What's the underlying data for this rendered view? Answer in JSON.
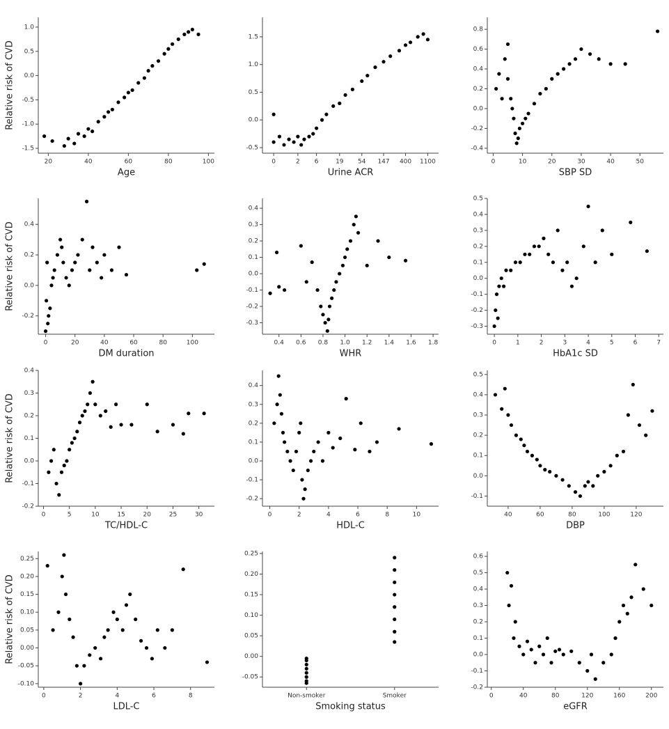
{
  "chart_data": [
    {
      "type": "scatter",
      "ylabel": "Relative risk of CVD",
      "xlabel": "Age",
      "color": "#000000",
      "x": [
        18,
        22,
        28,
        30,
        33,
        35,
        38,
        40,
        42,
        45,
        48,
        50,
        52,
        55,
        58,
        60,
        62,
        65,
        68,
        70,
        72,
        75,
        78,
        80,
        82,
        85,
        88,
        90,
        92,
        95
      ],
      "y": [
        -1.25,
        -1.35,
        -1.45,
        -1.3,
        -1.4,
        -1.2,
        -1.25,
        -1.1,
        -1.15,
        -0.95,
        -0.85,
        -0.75,
        -0.7,
        -0.55,
        -0.45,
        -0.35,
        -0.3,
        -0.15,
        -0.05,
        0.1,
        0.2,
        0.3,
        0.45,
        0.55,
        0.65,
        0.75,
        0.85,
        0.9,
        0.95,
        0.85
      ],
      "xlim": [
        15,
        103
      ],
      "xticks": [
        20,
        40,
        60,
        80,
        100
      ],
      "ylim": [
        -1.6,
        1.2
      ],
      "yticks": [
        -1.5,
        {
          "value": -1.0,
          "label": "-1.0"
        },
        -0.5,
        {
          "value": 0.0,
          "label": "0.0"
        },
        0.5,
        {
          "value": 1.0,
          "label": "1.0"
        }
      ]
    },
    {
      "type": "scatter",
      "xlabel": "Urine ACR",
      "color": "#000000",
      "xscale": "log1p",
      "x": [
        0,
        0,
        0.3,
        0.6,
        1,
        1.5,
        2,
        2.5,
        3,
        4,
        5,
        6,
        8,
        10,
        14,
        19,
        25,
        35,
        54,
        70,
        100,
        147,
        200,
        300,
        400,
        500,
        700,
        900,
        1100
      ],
      "y": [
        -0.4,
        0.1,
        -0.3,
        -0.45,
        -0.35,
        -0.4,
        -0.3,
        -0.45,
        -0.35,
        -0.3,
        -0.25,
        -0.15,
        0.0,
        0.1,
        0.25,
        0.3,
        0.45,
        0.55,
        0.7,
        0.8,
        0.95,
        1.05,
        1.15,
        1.25,
        1.35,
        1.4,
        1.5,
        1.55,
        1.45
      ],
      "xlim": [
        -0.4,
        1800
      ],
      "xticks": [
        0,
        2,
        6,
        19,
        54,
        147,
        400,
        1100
      ],
      "ylim": [
        -0.6,
        1.85
      ],
      "yticks": [
        -0.5,
        {
          "value": 0.0,
          "label": "0.0"
        },
        0.5,
        {
          "value": 1.0,
          "label": "1.0"
        },
        1.5
      ]
    },
    {
      "type": "scatter",
      "xlabel": "SBP SD",
      "color": "#000000",
      "x": [
        1,
        2,
        3,
        4,
        5,
        5,
        6,
        6.5,
        7,
        7.5,
        8,
        8.5,
        9,
        10,
        11,
        12,
        14,
        16,
        18,
        20,
        22,
        24,
        26,
        28,
        30,
        33,
        36,
        40,
        45,
        56
      ],
      "y": [
        0.2,
        0.35,
        0.1,
        0.5,
        0.3,
        0.65,
        0.1,
        0.0,
        -0.1,
        -0.25,
        -0.35,
        -0.3,
        -0.2,
        -0.15,
        -0.1,
        -0.05,
        0.05,
        0.15,
        0.2,
        0.3,
        0.35,
        0.4,
        0.45,
        0.5,
        0.6,
        0.55,
        0.5,
        0.45,
        0.45,
        0.78
      ],
      "xlim": [
        -2,
        58
      ],
      "xticks": [
        0,
        10,
        20,
        30,
        40,
        50
      ],
      "ylim": [
        -0.45,
        0.92
      ],
      "yticks": [
        -0.4,
        -0.2,
        {
          "value": 0.0,
          "label": "0.0"
        },
        0.2,
        0.4,
        0.6,
        0.8
      ]
    },
    {
      "type": "scatter",
      "ylabel": "Relative risk of CVD",
      "xlabel": "DM duration",
      "color": "#000000",
      "x": [
        0,
        0.5,
        1,
        1.5,
        2,
        3,
        4,
        5,
        6,
        8,
        10,
        11,
        12,
        14,
        16,
        18,
        20,
        22,
        25,
        28,
        30,
        32,
        35,
        38,
        40,
        45,
        50,
        55,
        103,
        108
      ],
      "y": [
        -0.3,
        -0.1,
        0.15,
        -0.25,
        -0.2,
        -0.15,
        0.0,
        0.05,
        0.1,
        0.2,
        0.3,
        0.25,
        0.15,
        0.05,
        0.0,
        0.1,
        0.15,
        0.2,
        0.3,
        0.55,
        0.1,
        0.25,
        0.15,
        0.05,
        0.2,
        0.1,
        0.25,
        0.07,
        0.1,
        0.14
      ],
      "xlim": [
        -5,
        115
      ],
      "xticks": [
        0,
        20,
        40,
        60,
        80,
        100
      ],
      "ylim": [
        -0.32,
        0.57
      ],
      "yticks": [
        -0.2,
        {
          "value": 0.0,
          "label": "0.0"
        },
        0.2,
        0.4
      ]
    },
    {
      "type": "scatter",
      "xlabel": "WHR",
      "color": "#000000",
      "x": [
        0.32,
        0.38,
        0.4,
        0.45,
        0.6,
        0.65,
        0.7,
        0.75,
        0.78,
        0.8,
        0.82,
        0.84,
        0.85,
        0.86,
        0.88,
        0.9,
        0.92,
        0.95,
        0.98,
        1.0,
        1.02,
        1.05,
        1.08,
        1.1,
        1.12,
        1.2,
        1.3,
        1.4,
        1.55
      ],
      "y": [
        -0.12,
        0.13,
        -0.08,
        -0.1,
        0.17,
        -0.05,
        0.07,
        -0.1,
        -0.2,
        -0.25,
        -0.3,
        -0.35,
        -0.28,
        -0.2,
        -0.15,
        -0.1,
        -0.05,
        0.0,
        0.05,
        0.1,
        0.15,
        0.2,
        0.3,
        0.35,
        0.25,
        0.05,
        0.2,
        0.1,
        0.08
      ],
      "xlim": [
        0.25,
        1.85
      ],
      "xticks": [
        0.4,
        0.6,
        0.8,
        {
          "value": 1.0,
          "label": "1.0"
        },
        1.2,
        1.4,
        1.6,
        1.8
      ],
      "ylim": [
        -0.37,
        0.46
      ],
      "yticks": [
        -0.3,
        -0.2,
        -0.1,
        {
          "value": 0.0,
          "label": "0.0"
        },
        0.1,
        0.2,
        0.3,
        0.4
      ]
    },
    {
      "type": "scatter",
      "xlabel": "HbA1c SD",
      "color": "#000000",
      "x": [
        0,
        0.05,
        0.1,
        0.15,
        0.2,
        0.3,
        0.4,
        0.5,
        0.7,
        0.9,
        1.1,
        1.3,
        1.5,
        1.7,
        1.9,
        2.1,
        2.3,
        2.5,
        2.7,
        2.9,
        3.1,
        3.3,
        3.5,
        3.8,
        4.0,
        4.3,
        4.6,
        5.0,
        5.8,
        6.5
      ],
      "y": [
        -0.3,
        -0.2,
        -0.1,
        -0.25,
        -0.05,
        0.0,
        -0.05,
        0.05,
        0.05,
        0.1,
        0.1,
        0.15,
        0.15,
        0.2,
        0.2,
        0.25,
        0.15,
        0.1,
        0.3,
        0.05,
        0.1,
        -0.05,
        0.0,
        0.2,
        0.45,
        0.1,
        0.3,
        0.15,
        0.35,
        0.17
      ],
      "xlim": [
        -0.3,
        7.2
      ],
      "xticks": [
        0,
        1,
        2,
        3,
        4,
        5,
        6,
        7
      ],
      "ylim": [
        -0.35,
        0.5
      ],
      "yticks": [
        -0.3,
        -0.2,
        -0.1,
        {
          "value": 0.0,
          "label": "0.0"
        },
        0.1,
        0.2,
        0.3,
        0.4,
        0.5
      ]
    },
    {
      "type": "scatter",
      "ylabel": "Relative risk of CVD",
      "xlabel": "TC/HDL-C",
      "color": "#000000",
      "x": [
        1,
        1.5,
        2,
        2.5,
        3,
        3.5,
        4,
        4.5,
        5,
        5.5,
        6,
        6.5,
        7,
        7.5,
        8,
        8.5,
        9,
        9.5,
        10,
        11,
        12,
        13,
        14,
        15,
        17,
        20,
        22,
        25,
        27,
        28,
        31
      ],
      "y": [
        -0.05,
        0.0,
        0.05,
        -0.1,
        -0.15,
        -0.05,
        -0.02,
        0.0,
        0.05,
        0.08,
        0.1,
        0.13,
        0.17,
        0.2,
        0.22,
        0.25,
        0.3,
        0.35,
        0.25,
        0.2,
        0.22,
        0.15,
        0.25,
        0.16,
        0.16,
        0.25,
        0.13,
        0.16,
        0.12,
        0.21,
        0.21
      ],
      "xlim": [
        -1,
        33
      ],
      "xticks": [
        0,
        5,
        10,
        15,
        20,
        25,
        30
      ],
      "ylim": [
        -0.2,
        0.4
      ],
      "yticks": [
        -0.2,
        -0.1,
        {
          "value": 0.0,
          "label": "0.0"
        },
        0.1,
        0.2,
        0.3,
        0.4
      ]
    },
    {
      "type": "scatter",
      "xlabel": "HDL-C",
      "color": "#000000",
      "x": [
        0.3,
        0.5,
        0.6,
        0.7,
        0.8,
        0.9,
        1.0,
        1.2,
        1.4,
        1.6,
        1.8,
        2.0,
        2.1,
        2.2,
        2.3,
        2.4,
        2.6,
        2.8,
        3.0,
        3.3,
        3.6,
        4.0,
        4.3,
        4.8,
        5.2,
        5.8,
        6.2,
        6.8,
        7.3,
        8.8,
        11
      ],
      "y": [
        0.2,
        0.3,
        0.45,
        0.35,
        0.25,
        0.15,
        0.1,
        0.05,
        0.0,
        -0.05,
        0.05,
        0.15,
        0.2,
        -0.1,
        -0.2,
        -0.15,
        -0.05,
        0.0,
        0.05,
        0.1,
        0.0,
        0.15,
        0.07,
        0.12,
        0.33,
        0.06,
        0.2,
        0.05,
        0.1,
        0.17,
        0.09
      ],
      "xlim": [
        -0.5,
        11.5
      ],
      "xticks": [
        0,
        2,
        4,
        6,
        8,
        10
      ],
      "ylim": [
        -0.24,
        0.48
      ],
      "yticks": [
        -0.2,
        -0.1,
        {
          "value": 0.0,
          "label": "0.0"
        },
        0.1,
        0.2,
        0.3,
        0.4
      ]
    },
    {
      "type": "scatter",
      "xlabel": "DBP",
      "color": "#000000",
      "x": [
        32,
        36,
        38,
        40,
        42,
        45,
        48,
        50,
        52,
        55,
        58,
        60,
        63,
        66,
        70,
        74,
        78,
        82,
        85,
        88,
        90,
        93,
        96,
        100,
        104,
        108,
        112,
        115,
        118,
        122,
        126,
        130
      ],
      "y": [
        0.4,
        0.33,
        0.43,
        0.3,
        0.25,
        0.2,
        0.18,
        0.15,
        0.12,
        0.1,
        0.08,
        0.05,
        0.03,
        0.02,
        0.0,
        -0.02,
        -0.05,
        -0.08,
        -0.1,
        -0.05,
        -0.03,
        -0.05,
        0.0,
        0.02,
        0.05,
        0.1,
        0.12,
        0.3,
        0.45,
        0.25,
        0.2,
        0.32
      ],
      "xlim": [
        27,
        137
      ],
      "xticks": [
        40,
        60,
        80,
        100,
        120
      ],
      "ylim": [
        -0.15,
        0.52
      ],
      "yticks": [
        -0.1,
        {
          "value": 0.0,
          "label": "0.0"
        },
        0.1,
        0.2,
        0.3,
        0.4,
        0.5
      ]
    },
    {
      "type": "scatter",
      "ylabel": "Relative risk of CVD",
      "xlabel": "LDL-C",
      "color": "#000000",
      "x": [
        0.2,
        0.5,
        0.8,
        1.0,
        1.1,
        1.2,
        1.4,
        1.6,
        1.8,
        2.0,
        2.2,
        2.5,
        2.8,
        3.1,
        3.3,
        3.5,
        3.8,
        4.0,
        4.3,
        4.5,
        4.7,
        5.0,
        5.3,
        5.6,
        5.9,
        6.2,
        6.6,
        7.0,
        7.6,
        8.9
      ],
      "y": [
        0.23,
        0.05,
        0.1,
        0.2,
        0.26,
        0.15,
        0.08,
        0.03,
        -0.05,
        -0.1,
        -0.05,
        -0.02,
        0.0,
        -0.03,
        0.03,
        0.05,
        0.1,
        0.08,
        0.05,
        0.12,
        0.15,
        0.08,
        0.02,
        0.0,
        -0.03,
        0.05,
        0.0,
        0.05,
        0.22,
        -0.04
      ],
      "xlim": [
        -0.3,
        9.3
      ],
      "xticks": [
        0,
        2,
        4,
        6,
        8
      ],
      "ylim": [
        -0.11,
        0.27
      ],
      "yticks": [
        {
          "value": -0.1,
          "label": "-0.10"
        },
        -0.05,
        {
          "value": 0.0,
          "label": "0.00"
        },
        0.05,
        {
          "value": 0.1,
          "label": "0.10"
        },
        0.15,
        {
          "value": 0.2,
          "label": "0.20"
        },
        0.25
      ]
    },
    {
      "type": "strip",
      "xlabel": "Smoking status",
      "color": "#000000",
      "categories": [
        "Non-smoker",
        "Smoker"
      ],
      "values": [
        [
          -0.065,
          -0.06,
          -0.05,
          -0.04,
          -0.03,
          -0.02,
          -0.01,
          -0.005
        ],
        [
          0.035,
          0.06,
          0.09,
          0.12,
          0.15,
          0.18,
          0.21,
          0.24
        ]
      ],
      "ylim": [
        -0.075,
        0.255
      ],
      "yticks": [
        -0.05,
        {
          "value": 0.0,
          "label": "0.00"
        },
        0.05,
        {
          "value": 0.1,
          "label": "0.10"
        },
        0.15,
        {
          "value": 0.2,
          "label": "0.20"
        },
        0.25
      ]
    },
    {
      "type": "scatter",
      "xlabel": "eGFR",
      "color": "#000000",
      "x": [
        20,
        22,
        25,
        28,
        30,
        35,
        40,
        45,
        50,
        55,
        60,
        65,
        70,
        75,
        80,
        85,
        90,
        100,
        110,
        120,
        125,
        130,
        140,
        150,
        155,
        160,
        165,
        170,
        175,
        180,
        190,
        200
      ],
      "y": [
        0.5,
        0.3,
        0.42,
        0.1,
        0.2,
        0.05,
        0.0,
        0.08,
        0.03,
        -0.05,
        0.05,
        0.0,
        0.1,
        -0.05,
        0.02,
        0.03,
        0.0,
        0.02,
        -0.05,
        -0.1,
        0.0,
        -0.15,
        -0.05,
        0.0,
        0.1,
        0.2,
        0.3,
        0.25,
        0.35,
        0.55,
        0.4,
        0.3
      ],
      "xlim": [
        -5,
        215
      ],
      "xticks": [
        0,
        40,
        80,
        120,
        160,
        200
      ],
      "ylim": [
        -0.2,
        0.63
      ],
      "yticks": [
        -0.2,
        -0.1,
        {
          "value": 0.0,
          "label": "0.0"
        },
        0.1,
        0.2,
        0.3,
        0.4,
        0.5,
        0.6
      ]
    }
  ]
}
